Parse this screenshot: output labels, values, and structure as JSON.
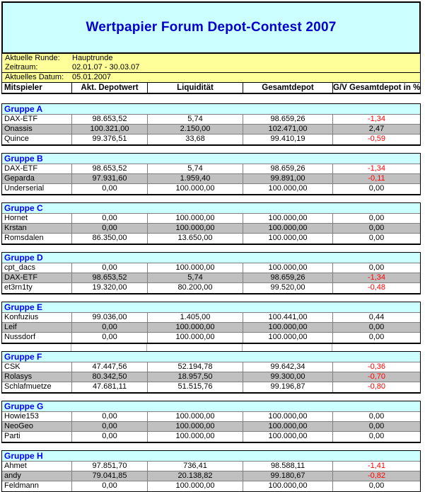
{
  "title": "Wertpapier Forum Depot-Contest 2007",
  "info": {
    "rows_top": [
      {
        "label": "Aktuelle Runde:",
        "value": "Hauptrunde"
      },
      {
        "label": "Zeitraum:",
        "value": "02.01.07 - 30.03.07"
      }
    ],
    "rows_bottom": [
      {
        "label": "Aktuelles Datum:",
        "value": "05.01.2007"
      }
    ]
  },
  "table": {
    "columns": [
      "Mitspieler",
      "Akt. Depotwert",
      "Liquidität",
      "Gesamtdepot",
      "G/V Gesamtdepot in %"
    ]
  },
  "groups": [
    {
      "name": "Gruppe A",
      "rows": [
        {
          "player": "DAX-ETF",
          "depot": "98.653,52",
          "liquid": "5,74",
          "total": "98.659,26",
          "gv": "-1,34"
        },
        {
          "player": "Onassis",
          "depot": "100.321,00",
          "liquid": "2.150,00",
          "total": "102.471,00",
          "gv": "2,47"
        },
        {
          "player": "Quince",
          "depot": "99.376,51",
          "liquid": "33,68",
          "total": "99.410,19",
          "gv": "-0,59"
        }
      ]
    },
    {
      "name": "Gruppe B",
      "rows": [
        {
          "player": "DAX-ETF",
          "depot": "98.653,52",
          "liquid": "5,74",
          "total": "98.659,26",
          "gv": "-1,34"
        },
        {
          "player": "Geparda",
          "depot": "97.931,60",
          "liquid": "1.959,40",
          "total": "99.891,00",
          "gv": "-0,11"
        },
        {
          "player": "Underserial",
          "depot": "0,00",
          "liquid": "100.000,00",
          "total": "100.000,00",
          "gv": "0,00"
        }
      ]
    },
    {
      "name": "Gruppe C",
      "rows": [
        {
          "player": "Hornet",
          "depot": "0,00",
          "liquid": "100.000,00",
          "total": "100.000,00",
          "gv": "0,00"
        },
        {
          "player": "Krstan",
          "depot": "0,00",
          "liquid": "100.000,00",
          "total": "100.000,00",
          "gv": "0,00"
        },
        {
          "player": "Romsdalen",
          "depot": "86.350,00",
          "liquid": "13.650,00",
          "total": "100.000,00",
          "gv": "0,00"
        }
      ]
    },
    {
      "name": "Gruppe D",
      "rows": [
        {
          "player": "cpt_dacs",
          "depot": "0,00",
          "liquid": "100.000,00",
          "total": "100.000,00",
          "gv": "0,00"
        },
        {
          "player": "DAX-ETF",
          "depot": "98.653,52",
          "liquid": "5,74",
          "total": "98.659,26",
          "gv": "-1,34"
        },
        {
          "player": "et3rn1ty",
          "depot": "19.320,00",
          "liquid": "80.200,00",
          "total": "99.520,00",
          "gv": "-0,48"
        }
      ]
    },
    {
      "name": "Gruppe E",
      "rows": [
        {
          "player": "Konfuzius",
          "depot": "99.036,00",
          "liquid": "1.405,00",
          "total": "100.441,00",
          "gv": "0,44"
        },
        {
          "player": "Leif",
          "depot": "0,00",
          "liquid": "100.000,00",
          "total": "100.000,00",
          "gv": "0,00"
        },
        {
          "player": "Nussdorf",
          "depot": "0,00",
          "liquid": "100.000,00",
          "total": "100.000,00",
          "gv": "0,00"
        }
      ]
    },
    {
      "name": "Gruppe F",
      "rows": [
        {
          "player": "CSK",
          "depot": "47.447,56",
          "liquid": "52.194,78",
          "total": "99.642,34",
          "gv": "-0,36"
        },
        {
          "player": "Rolasys",
          "depot": "80.342,50",
          "liquid": "18.957,50",
          "total": "99.300,00",
          "gv": "-0,70"
        },
        {
          "player": "Schlafmuetze",
          "depot": "47.681,11",
          "liquid": "51.515,76",
          "total": "99.196,87",
          "gv": "-0,80"
        }
      ]
    },
    {
      "name": "Gruppe G",
      "rows": [
        {
          "player": "Howie153",
          "depot": "0,00",
          "liquid": "100.000,00",
          "total": "100.000,00",
          "gv": "0,00"
        },
        {
          "player": "NeoGeo",
          "depot": "0,00",
          "liquid": "100.000,00",
          "total": "100.000,00",
          "gv": "0,00"
        },
        {
          "player": "Parti",
          "depot": "0,00",
          "liquid": "100.000,00",
          "total": "100.000,00",
          "gv": "0,00"
        }
      ]
    },
    {
      "name": "Gruppe H",
      "rows": [
        {
          "player": "Ahmet",
          "depot": "97.851,70",
          "liquid": "736,41",
          "total": "98.588,11",
          "gv": "-1,41"
        },
        {
          "player": "andy",
          "depot": "79.041,85",
          "liquid": "20.138,82",
          "total": "99.180,67",
          "gv": "-0,82"
        },
        {
          "player": "Feldmann",
          "depot": "0,00",
          "liquid": "100.000,00",
          "total": "100.000,00",
          "gv": "0,00"
        }
      ]
    }
  ],
  "colors": {
    "title_text": "#0000CC",
    "group_header_text": "#0000FF",
    "header_bg": "#CCFFFF",
    "info_bg": "#FFFF99",
    "stripe_row_bg": "#C0C0C0",
    "negative_text": "#FF0000"
  }
}
